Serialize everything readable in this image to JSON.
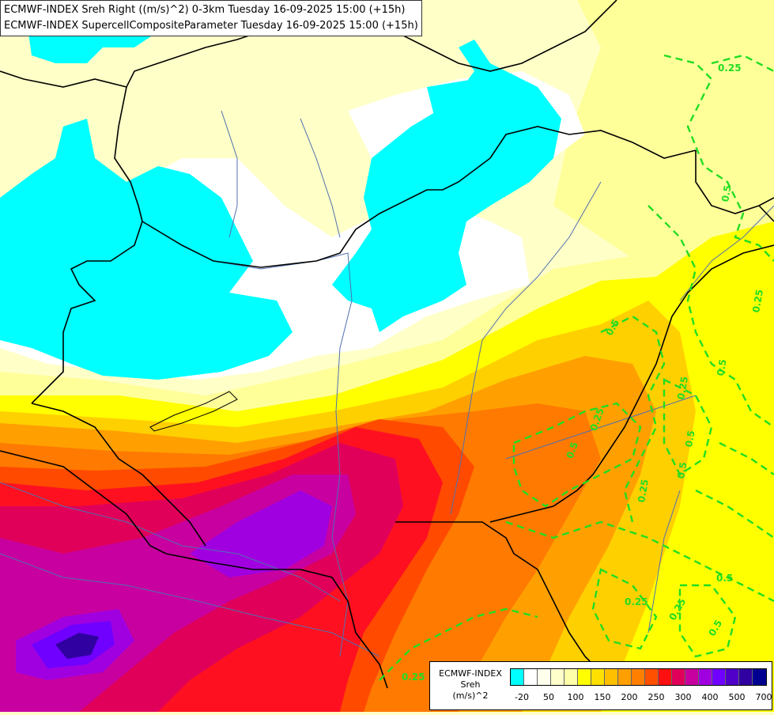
{
  "title": {
    "line1": "ECMWF-INDEX Sreh Right ((m/s)^2) 0-3km Tuesday 16-09-2025 15:00 (+15h)",
    "line2": "ECMWF-INDEX SupercellCompositeParameter Tuesday 16-09-2025 15:00 (+15h)"
  },
  "legend": {
    "line1": "ECMWF-INDEX",
    "line2": "Sreh",
    "line3": "(m/s)^2",
    "colors": [
      "#00ffff",
      "#ffffff",
      "#ffffee",
      "#ffffcc",
      "#ffffaa",
      "#ffff00",
      "#ffe000",
      "#ffc000",
      "#ff9f00",
      "#ff8000",
      "#ff5000",
      "#ff1010",
      "#e0005a",
      "#c800a0",
      "#a000e0",
      "#7000ff",
      "#5000c8",
      "#3000a0",
      "#000090"
    ],
    "ticks": [
      "-20",
      "50",
      "100",
      "150",
      "200",
      "250",
      "300",
      "400",
      "500",
      "700"
    ]
  },
  "contour_labels": [
    "0.25",
    "0.25",
    "0.5",
    "0.5",
    "0.5",
    "0.25",
    "0.25",
    "0.5",
    "0.25",
    "0.5",
    "0.25",
    "0.25",
    "0.5",
    "0.25",
    "0.5",
    "0.5"
  ],
  "colors": {
    "cyan": "#00ffff",
    "white": "#ffffff",
    "pale": "#ffffc8",
    "light": "#ffff9a",
    "yellow": "#ffff00",
    "gold": "#ffd000",
    "orange": "#ffa000",
    "dark_orange": "#ff7a00",
    "red_orange": "#ff4a00",
    "red": "#ff1020",
    "crimson": "#e0005a",
    "magenta": "#c800a0",
    "purple": "#a000e0",
    "violet": "#7000ff",
    "indigo": "#3000a0",
    "navy": "#000090",
    "border": "#000000",
    "river": "#5070b0",
    "contour": "#22dd22"
  }
}
